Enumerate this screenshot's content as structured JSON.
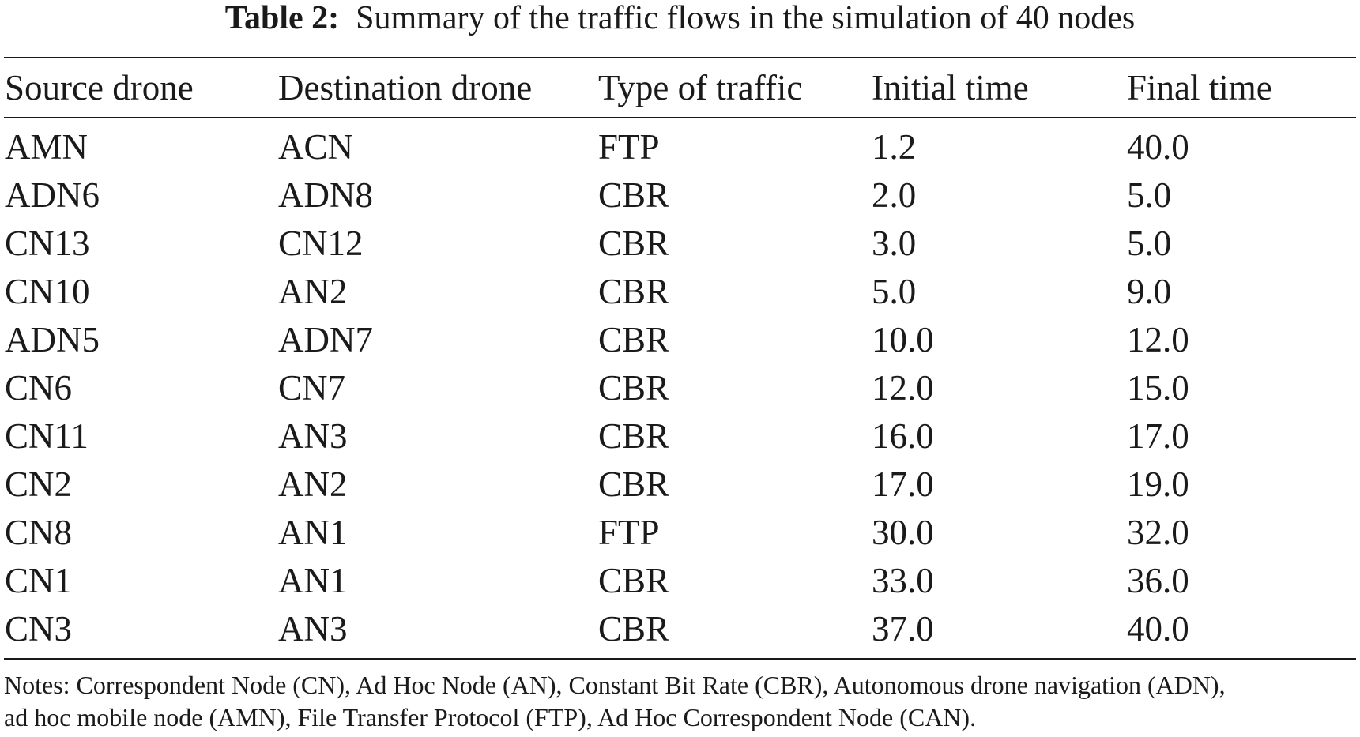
{
  "caption": {
    "label": "Table 2:",
    "text": "Summary of the traffic flows in the simulation of 40 nodes"
  },
  "table": {
    "headers": [
      "Source drone",
      "Destination drone",
      "Type of traffic",
      "Initial time",
      "Final time"
    ],
    "rows": [
      [
        "AMN",
        "ACN",
        "FTP",
        "1.2",
        "40.0"
      ],
      [
        "ADN6",
        "ADN8",
        "CBR",
        "2.0",
        "5.0"
      ],
      [
        "CN13",
        "CN12",
        "CBR",
        "3.0",
        "5.0"
      ],
      [
        "CN10",
        "AN2",
        "CBR",
        "5.0",
        "9.0"
      ],
      [
        "ADN5",
        "ADN7",
        "CBR",
        "10.0",
        "12.0"
      ],
      [
        "CN6",
        "CN7",
        "CBR",
        "12.0",
        "15.0"
      ],
      [
        "CN11",
        "AN3",
        "CBR",
        "16.0",
        "17.0"
      ],
      [
        "CN2",
        "AN2",
        "CBR",
        "17.0",
        "19.0"
      ],
      [
        "CN8",
        "AN1",
        "FTP",
        "30.0",
        "32.0"
      ],
      [
        "CN1",
        "AN1",
        "CBR",
        "33.0",
        "36.0"
      ],
      [
        "CN3",
        "AN3",
        "CBR",
        "37.0",
        "40.0"
      ]
    ]
  },
  "notes": {
    "line1": "Notes: Correspondent Node (CN), Ad Hoc Node (AN), Constant Bit Rate (CBR), Autonomous drone navigation (ADN),",
    "line2": "ad hoc mobile node (AMN), File Transfer Protocol (FTP), Ad Hoc Correspondent Node (CAN)."
  }
}
